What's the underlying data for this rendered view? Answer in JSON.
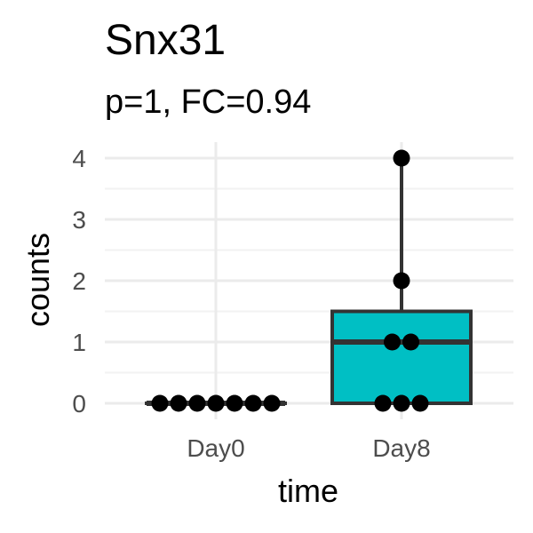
{
  "chart_data": {
    "type": "box",
    "title": "Snx31",
    "subtitle": "p=1, FC=0.94",
    "xlabel": "time",
    "ylabel": "counts",
    "categories": [
      "Day0",
      "Day8"
    ],
    "ylim": [
      -0.35,
      4.2
    ],
    "yticks": [
      0,
      1,
      2,
      3,
      4
    ],
    "grid": true,
    "fill_color": "#00BFC4",
    "box_stats": [
      {
        "category": "Day0",
        "min": 0,
        "q1": 0,
        "median": 0,
        "q3": 0,
        "max": 0
      },
      {
        "category": "Day8",
        "min": 0,
        "q1": 0,
        "median": 1,
        "q3": 1.5,
        "max": 4
      }
    ],
    "points": [
      {
        "category": "Day0",
        "values": [
          0,
          0,
          0,
          0,
          0,
          0,
          0
        ]
      },
      {
        "category": "Day8",
        "values": [
          4,
          2,
          1,
          1,
          0,
          0,
          0
        ]
      }
    ]
  }
}
